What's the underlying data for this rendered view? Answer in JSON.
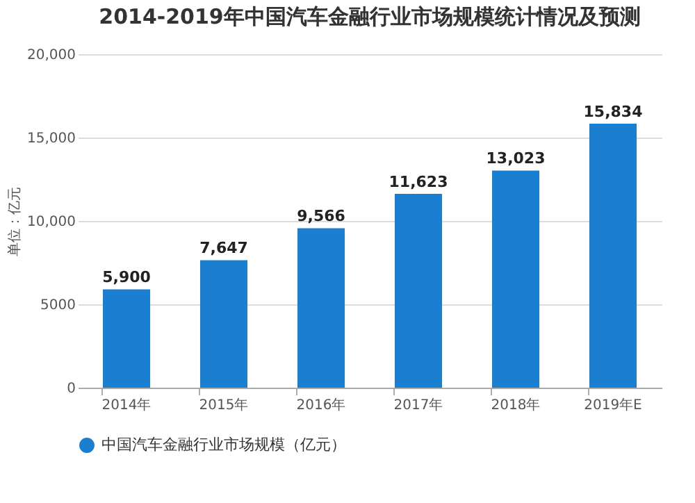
{
  "chart_data": {
    "type": "bar",
    "title": "2014-2019年中国汽车金融行业市场规模统计情况及预测",
    "ylabel": "单位：亿元",
    "categories": [
      "2014年",
      "2015年",
      "2016年",
      "2017年",
      "2018年",
      "2019年E"
    ],
    "series": [
      {
        "name": "中国汽车金融行业市场规模（亿元）",
        "color": "#1a7fd0",
        "values": [
          5900,
          7647,
          9566,
          11623,
          13023,
          15834
        ],
        "value_labels": [
          "5,900",
          "7,647",
          "9,566",
          "11,623",
          "13,023",
          "15,834"
        ]
      }
    ],
    "ylim": [
      0,
      20000
    ],
    "yticks": [
      {
        "value": 0,
        "label": "0"
      },
      {
        "value": 5000,
        "label": "5000"
      },
      {
        "value": 10000,
        "label": "10,000"
      },
      {
        "value": 15000,
        "label": "15,000"
      },
      {
        "value": 20000,
        "label": "20,000"
      }
    ],
    "grid": "y",
    "legend": "bottom"
  }
}
